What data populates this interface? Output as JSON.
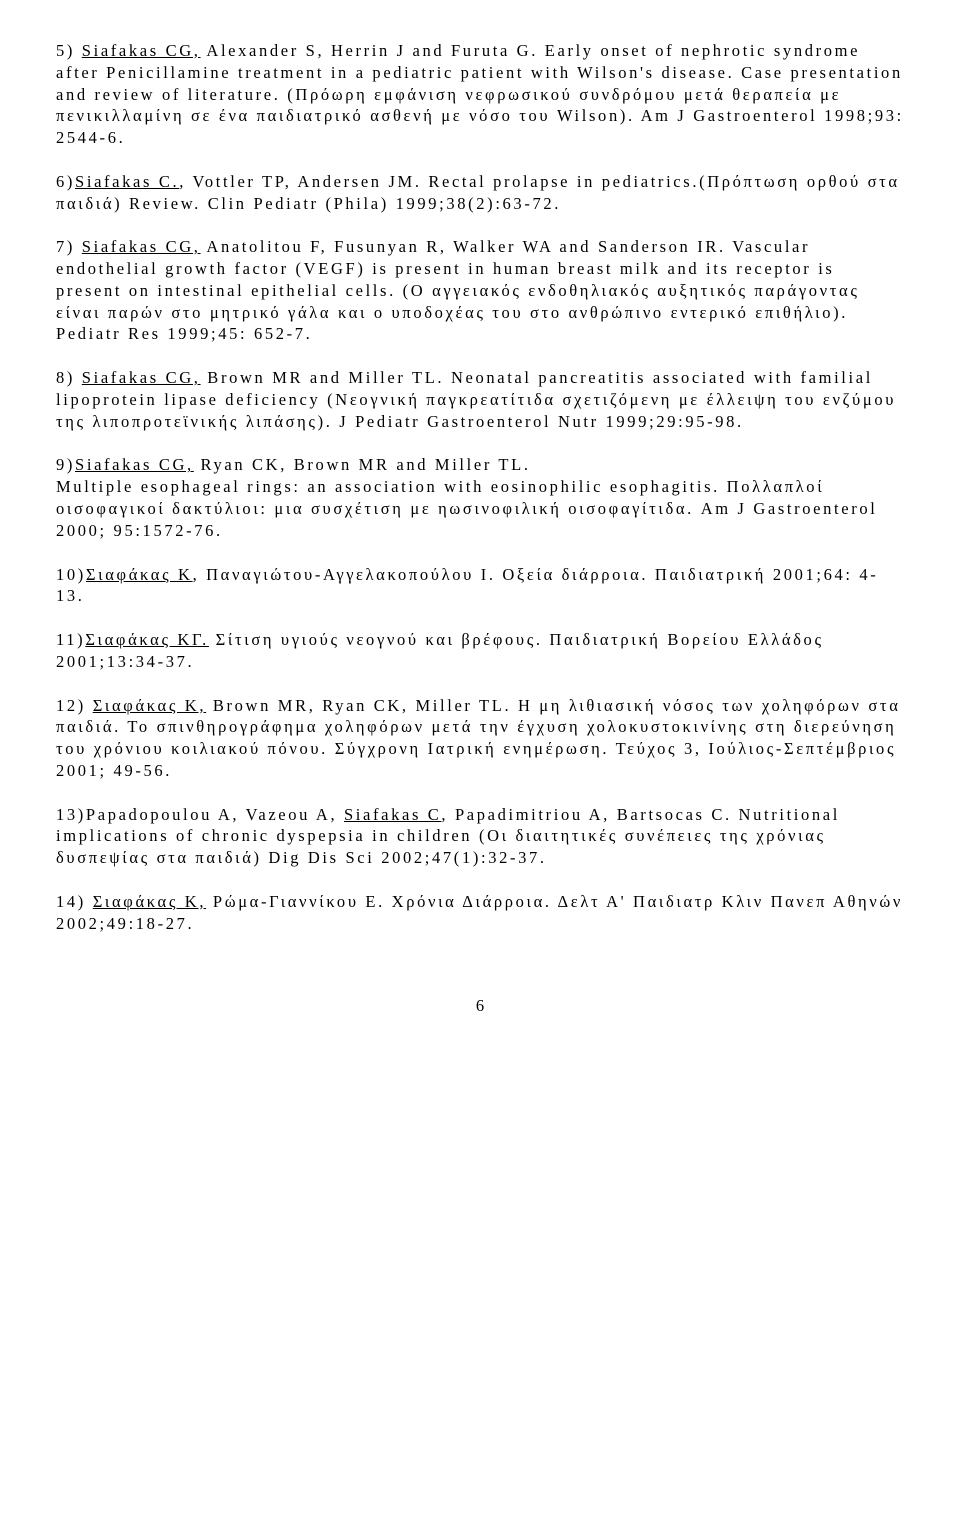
{
  "typography": {
    "font_family": "Times New Roman",
    "font_size_pt": 12,
    "letter_spacing_em": 0.16,
    "line_height": 1.32,
    "text_color": "#000000",
    "background_color": "#ffffff"
  },
  "page_number": "6",
  "paragraphs": [
    {
      "segments": [
        {
          "text": "5) ",
          "underline": false
        },
        {
          "text": "Siafakas CG,",
          "underline": true
        },
        {
          "text": " Alexander S, Herrin J and Furuta G. Early onset of nephrotic syndrome after Penicillamine treatment in a pediatric patient with Wilson's disease. Case presentation and review of literature. (Πρόωρη εμφάνιση νεφρωσικού συνδρόμου μετά θεραπεία με πενικιλλαμίνη σε ένα παιδιατρικό ασθενή με νόσο του Wilson). Am J Gastroenterol 1998;93: 2544-6.",
          "underline": false
        }
      ]
    },
    {
      "segments": [
        {
          "text": "6)",
          "underline": false
        },
        {
          "text": "Siafakas C.",
          "underline": true
        },
        {
          "text": ", Vottler TP, Andersen JM. Rectal prolapse in pediatrics.(Πρόπτωση ορθού στα παιδιά) Review. Clin Pediatr (Phila) 1999;38(2):63-72.",
          "underline": false
        }
      ]
    },
    {
      "segments": [
        {
          "text": "7) ",
          "underline": false
        },
        {
          "text": "Siafakas CG,",
          "underline": true
        },
        {
          "text": " Anatolitou F, Fusunyan R, Walker WA and Sanderson IR. Vascular endothelial growth factor (VEGF) is present in human breast milk and its receptor is present on intestinal epithelial cells. (Ο αγγειακός ενδοθηλιακός αυξητικός παράγοντας είναι παρών στο μητρικό γάλα και ο υποδοχέας του στο ανθρώπινο εντερικό επιθήλιο). Pediatr Res 1999;45: 652-7.",
          "underline": false
        }
      ]
    },
    {
      "segments": [
        {
          "text": "8) ",
          "underline": false
        },
        {
          "text": "Siafakas CG,",
          "underline": true
        },
        {
          "text": " Brown MR and Miller TL. Neonatal pancreatitis associated with familial lipoprotein lipase deficiency (Νεογνική παγκρεατίτιδα σχετιζόμενη με έλλειψη του ενζύμου της λιποπροτεϊνικής λιπάσης). J Pediatr Gastroenterol Nutr 1999;29:95-98.",
          "underline": false
        }
      ]
    },
    {
      "segments": [
        {
          "text": "9)",
          "underline": false
        },
        {
          "text": "Siafakas CG,",
          "underline": true
        },
        {
          "text": " Ryan CK, Brown MR and Miller TL.\nMultiple esophageal rings: an association with eosinophilic esophagitis. Πολλαπλοί οισοφαγικοί δακτύλιοι: μια συσχέτιση με ηωσινοφιλική οισοφαγίτιδα. Am J Gastroenterol 2000; 95:1572-76.",
          "underline": false
        }
      ]
    },
    {
      "segments": [
        {
          "text": "10)",
          "underline": false
        },
        {
          "text": "Σιαφάκας Κ",
          "underline": true
        },
        {
          "text": ", Παναγιώτου-Αγγελακοπούλου Ι. Οξεία διάρροια. Παιδιατρική 2001;64: 4-13.",
          "underline": false
        }
      ]
    },
    {
      "segments": [
        {
          "text": "11)",
          "underline": false
        },
        {
          "text": "Σιαφάκας ΚΓ.",
          "underline": true
        },
        {
          "text": " Σίτιση υγιούς νεογνού και βρέφους. Παιδιατρική Βορείου Ελλάδος 2001;13:34-37.",
          "underline": false
        }
      ]
    },
    {
      "segments": [
        {
          "text": "12) ",
          "underline": false
        },
        {
          "text": "Σιαφάκας Κ,",
          "underline": true
        },
        {
          "text": " Brown MR, Ryan CK, Miller TL. Η μη λιθιασική νόσος των χοληφόρων στα παιδιά. Το σπινθηρογράφημα χοληφόρων μετά την έγχυση χολοκυστοκινίνης στη διερεύνηση του χρόνιου κοιλιακού πόνου. Σύγχρονη Ιατρική ενημέρωση. Τεύχος 3, Ιούλιος-Σεπτέμβριος 2001; 49-56.",
          "underline": false
        }
      ]
    },
    {
      "segments": [
        {
          "text": "13)Papadopoulou A, Vazeou A, ",
          "underline": false
        },
        {
          "text": "Siafakas C",
          "underline": true
        },
        {
          "text": ", Papadimitriou A, Bartsocas C. Nutritional implications of chronic dyspepsia in children (Οι διαιτητικές συνέπειες της χρόνιας δυσπεψίας στα παιδιά) Dig Dis Sci 2002;47(1):32-37.",
          "underline": false
        }
      ]
    },
    {
      "segments": [
        {
          "text": "14) ",
          "underline": false
        },
        {
          "text": "Σιαφάκας Κ,",
          "underline": true
        },
        {
          "text": " Ρώμα-Γιαννίκου Ε. Χρόνια Διάρροια. Δελτ Α' Παιδιατρ Κλιν Πανεπ Αθηνών 2002;49:18-27.",
          "underline": false
        }
      ]
    }
  ]
}
